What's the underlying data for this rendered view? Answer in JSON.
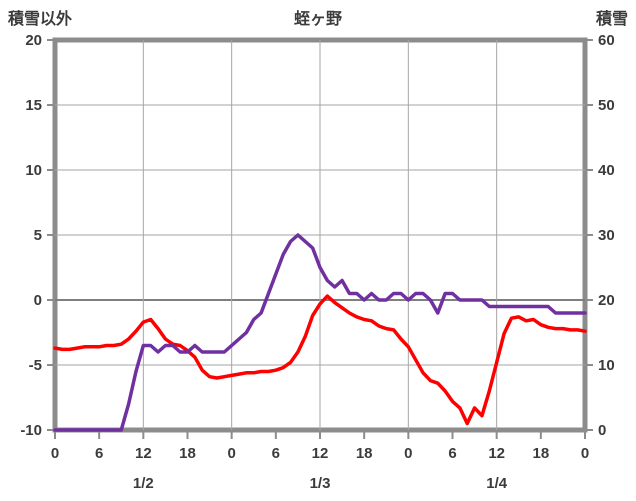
{
  "header": {
    "left_axis_label": "積雪以外",
    "title": "蛭ヶ野",
    "right_axis_label": "積雪"
  },
  "chart_data": {
    "type": "line",
    "title": "蛭ヶ野",
    "left_axis": {
      "label": "積雪以外",
      "min": -10,
      "max": 20,
      "ticks": [
        20,
        15,
        10,
        5,
        0,
        -5,
        -10
      ]
    },
    "right_axis": {
      "label": "積雪",
      "min": 0,
      "max": 60,
      "ticks": [
        60,
        50,
        40,
        30,
        20,
        10,
        0
      ]
    },
    "x_axis": {
      "min": 0,
      "max": 72,
      "tick_hours": [
        0,
        6,
        12,
        18,
        24,
        30,
        36,
        42,
        48,
        54,
        60,
        66,
        72
      ],
      "tick_labels": [
        "0",
        "6",
        "12",
        "18",
        "0",
        "6",
        "12",
        "18",
        "0",
        "6",
        "12",
        "18",
        "0"
      ],
      "gridline_hours": [
        12,
        24,
        36,
        48,
        60
      ],
      "date_labels": [
        {
          "label": "1/2",
          "hour": 12
        },
        {
          "label": "1/3",
          "hour": 36
        },
        {
          "label": "1/4",
          "hour": 60
        }
      ]
    },
    "series": [
      {
        "name": "temperature",
        "axis": "left",
        "color": "#ff0000",
        "values": [
          -3.7,
          -3.8,
          -3.8,
          -3.7,
          -3.6,
          -3.6,
          -3.6,
          -3.5,
          -3.5,
          -3.4,
          -3.0,
          -2.4,
          -1.7,
          -1.5,
          -2.2,
          -3.0,
          -3.4,
          -3.5,
          -3.9,
          -4.4,
          -5.4,
          -5.9,
          -6.0,
          -5.9,
          -5.8,
          -5.7,
          -5.6,
          -5.6,
          -5.5,
          -5.5,
          -5.4,
          -5.2,
          -4.8,
          -4.0,
          -2.8,
          -1.2,
          -0.3,
          0.3,
          -0.2,
          -0.6,
          -1.0,
          -1.3,
          -1.5,
          -1.6,
          -2.0,
          -2.2,
          -2.3,
          -3.0,
          -3.6,
          -4.6,
          -5.6,
          -6.2,
          -6.4,
          -7.0,
          -7.8,
          -8.3,
          -9.5,
          -8.3,
          -8.9,
          -7.0,
          -4.8,
          -2.6,
          -1.4,
          -1.3,
          -1.6,
          -1.5,
          -1.9,
          -2.1,
          -2.2,
          -2.2,
          -2.3,
          -2.3,
          -2.4
        ]
      },
      {
        "name": "snow-depth",
        "axis": "right",
        "color": "#7030a0",
        "values": [
          0,
          0,
          0,
          0,
          0,
          0,
          0,
          0,
          0,
          0,
          4,
          9,
          13,
          13,
          12,
          13,
          13,
          12,
          12,
          13,
          12,
          12,
          12,
          12,
          13,
          14,
          15,
          17,
          18,
          21,
          24,
          27,
          29,
          30,
          29,
          28,
          25,
          23,
          22,
          23,
          21,
          21,
          20,
          21,
          20,
          20,
          21,
          21,
          20,
          21,
          21,
          20,
          18,
          21,
          21,
          20,
          20,
          20,
          20,
          19,
          19,
          19,
          19,
          19,
          19,
          19,
          19,
          19,
          18,
          18,
          18,
          18,
          18
        ]
      }
    ],
    "colors": {
      "grid": "#a6a6a6",
      "zero_line": "#7f7f7f",
      "frame": "#8c8c8c",
      "text": "#3b3b3b"
    }
  }
}
